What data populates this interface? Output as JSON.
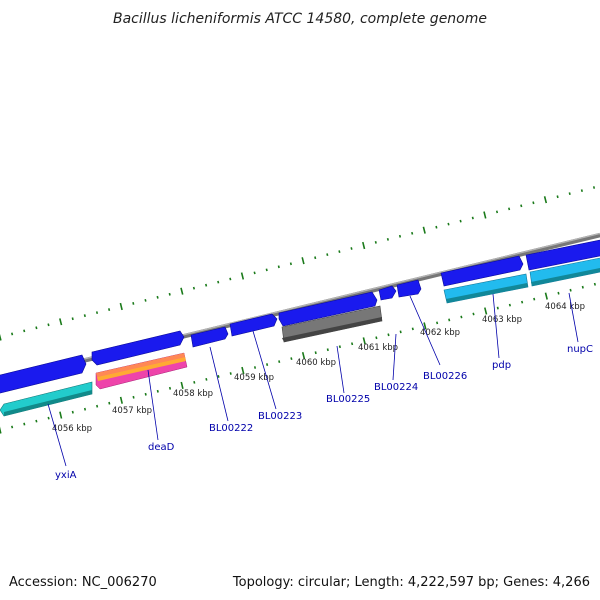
{
  "title": "Bacillus licheniformis ATCC 14580, complete genome",
  "footer": {
    "accession": "Accession: NC_006270",
    "summary": "Topology: circular; Length: 4,222,597 bp; Genes: 4,266"
  },
  "colors": {
    "backbone": "#8a8a8a",
    "forward_gene": "#1a1aee",
    "reverse_gene": "#22cccc",
    "reverse_gene_alt": "#22bbee",
    "pseudo_gene": "#777777",
    "rna_gene": "#ee44aa",
    "tick": "#1a7a1a",
    "label": "#0000aa"
  },
  "kbp_markers": [
    "4056 kbp",
    "4057 kbp",
    "4058 kbp",
    "4059 kbp",
    "4060 kbp",
    "4061 kbp",
    "4062 kbp",
    "4063 kbp",
    "4064 kbp"
  ],
  "gene_labels": [
    "yxiA",
    "deaD",
    "BL00222",
    "BL00223",
    "BL00225",
    "BL00224",
    "BL00226",
    "pdp",
    "nupC"
  ]
}
